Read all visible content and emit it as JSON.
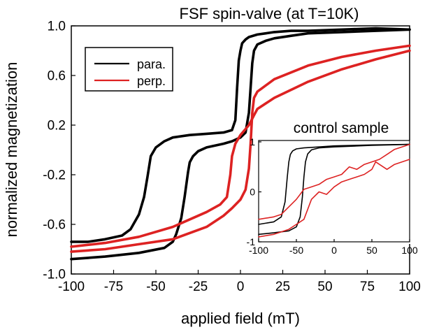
{
  "chart_data": [
    {
      "type": "line",
      "title": "FSF spin-valve (at T=10K)",
      "xlabel": "applied field (mT)",
      "ylabel": "normalized magnetization",
      "xlim": [
        -100,
        100
      ],
      "ylim": [
        -1.0,
        1.0
      ],
      "xticks": [
        -100,
        -75,
        -50,
        -25,
        0,
        25,
        50,
        75,
        100
      ],
      "yticks": [
        -1.0,
        -0.6,
        -0.2,
        0.2,
        0.6,
        1.0
      ],
      "xtick_labels": [
        "-100",
        "-75",
        "-50",
        "-25",
        "0",
        "25",
        "50",
        "75",
        "100"
      ],
      "ytick_labels": [
        "-1.0",
        "-0.6",
        "-0.2",
        "0.2",
        "0.6",
        "1.0"
      ],
      "legend_position": "top-left",
      "grid": false,
      "series": [
        {
          "name": "para.",
          "color": "#000000",
          "x": [
            -100,
            -90,
            -80,
            -70,
            -65,
            -60,
            -57,
            -55,
            -53,
            -50,
            -45,
            -40,
            -30,
            -20,
            -10,
            -5,
            -3,
            -2,
            -1,
            0,
            1,
            3,
            5,
            10,
            15,
            20,
            30,
            40,
            60,
            80,
            100
          ],
          "y": [
            -0.74,
            -0.74,
            -0.72,
            -0.69,
            -0.64,
            -0.52,
            -0.38,
            -0.22,
            -0.05,
            0.02,
            0.07,
            0.1,
            0.12,
            0.13,
            0.14,
            0.16,
            0.24,
            0.5,
            0.72,
            0.8,
            0.86,
            0.89,
            0.91,
            0.93,
            0.94,
            0.95,
            0.96,
            0.96,
            0.97,
            0.98,
            0.97
          ]
        },
        {
          "name": "para.",
          "color": "#000000",
          "x": [
            -100,
            -80,
            -60,
            -45,
            -40,
            -38,
            -35,
            -33,
            -31,
            -30,
            -28,
            -25,
            -20,
            -10,
            -5,
            0,
            3,
            5,
            6,
            7,
            8,
            10,
            15,
            20,
            30,
            40,
            60,
            80,
            100
          ],
          "y": [
            -0.88,
            -0.86,
            -0.83,
            -0.79,
            -0.74,
            -0.68,
            -0.55,
            -0.38,
            -0.18,
            -0.1,
            -0.05,
            -0.01,
            0.02,
            0.05,
            0.07,
            0.1,
            0.14,
            0.3,
            0.5,
            0.7,
            0.8,
            0.85,
            0.88,
            0.9,
            0.92,
            0.94,
            0.95,
            0.96,
            0.97
          ]
        },
        {
          "name": "perp.",
          "color": "#dd2222",
          "x": [
            -100,
            -80,
            -60,
            -40,
            -20,
            -12,
            -8,
            -6,
            -5,
            -3,
            0,
            5,
            8,
            10,
            20,
            40,
            60,
            80,
            100
          ],
          "y": [
            -0.78,
            -0.75,
            -0.7,
            -0.62,
            -0.5,
            -0.44,
            -0.38,
            -0.2,
            -0.05,
            0.05,
            0.12,
            0.2,
            0.28,
            0.33,
            0.42,
            0.55,
            0.65,
            0.73,
            0.8
          ]
        },
        {
          "name": "perp.",
          "color": "#dd2222",
          "x": [
            -100,
            -80,
            -60,
            -40,
            -20,
            -10,
            -5,
            0,
            3,
            5,
            6,
            7,
            8,
            10,
            20,
            40,
            60,
            80,
            100
          ],
          "y": [
            -0.82,
            -0.8,
            -0.76,
            -0.72,
            -0.62,
            -0.53,
            -0.47,
            -0.4,
            -0.32,
            -0.15,
            0.05,
            0.3,
            0.42,
            0.47,
            0.57,
            0.68,
            0.75,
            0.8,
            0.84
          ]
        }
      ]
    },
    {
      "type": "line",
      "title": "control sample",
      "xlim": [
        -100,
        100
      ],
      "ylim": [
        -1,
        1
      ],
      "xticks": [
        -100,
        -50,
        0,
        50,
        100
      ],
      "yticks": [
        -1,
        0,
        1
      ],
      "xtick_labels": [
        "-100",
        "-50",
        "0",
        "50",
        "100"
      ],
      "ytick_labels": [
        "-1",
        "0",
        "1"
      ],
      "grid": false,
      "series": [
        {
          "color": "#000000",
          "x": [
            -100,
            -80,
            -70,
            -65,
            -62,
            -60,
            -58,
            -55,
            -50,
            -40,
            -20,
            0,
            50,
            100
          ],
          "y": [
            -0.65,
            -0.6,
            -0.5,
            -0.2,
            0.3,
            0.6,
            0.75,
            0.82,
            0.86,
            0.88,
            0.9,
            0.92,
            0.94,
            0.95
          ]
        },
        {
          "color": "#000000",
          "x": [
            -100,
            -80,
            -60,
            -50,
            -45,
            -42,
            -40,
            -38,
            -35,
            -30,
            -20,
            0,
            50,
            100
          ],
          "y": [
            -0.85,
            -0.82,
            -0.78,
            -0.7,
            -0.5,
            -0.1,
            0.3,
            0.6,
            0.76,
            0.84,
            0.88,
            0.9,
            0.93,
            0.95
          ]
        },
        {
          "color": "#dd2222",
          "x": [
            -100,
            -80,
            -70,
            -60,
            -50,
            -40,
            -30,
            -20,
            -10,
            0,
            10,
            20,
            30,
            40,
            50,
            60,
            70,
            80,
            100
          ],
          "y": [
            -0.55,
            -0.5,
            -0.45,
            -0.3,
            -0.15,
            0.05,
            0.1,
            0.15,
            0.25,
            0.3,
            0.35,
            0.5,
            0.45,
            0.55,
            0.6,
            0.65,
            0.75,
            0.85,
            0.95
          ]
        },
        {
          "color": "#dd2222",
          "x": [
            -100,
            -80,
            -70,
            -60,
            -50,
            -40,
            -30,
            -20,
            -10,
            0,
            10,
            20,
            30,
            40,
            50,
            55,
            60,
            70,
            80,
            100
          ],
          "y": [
            -0.9,
            -0.85,
            -0.8,
            -0.75,
            -0.65,
            -0.55,
            -0.15,
            0.0,
            -0.05,
            0.1,
            0.2,
            0.25,
            0.3,
            0.35,
            0.45,
            0.6,
            0.55,
            0.45,
            0.55,
            0.65
          ]
        }
      ]
    }
  ],
  "legend": {
    "entries": [
      {
        "label": "para.",
        "color": "#000000"
      },
      {
        "label": "perp.",
        "color": "#dd2222"
      }
    ]
  }
}
